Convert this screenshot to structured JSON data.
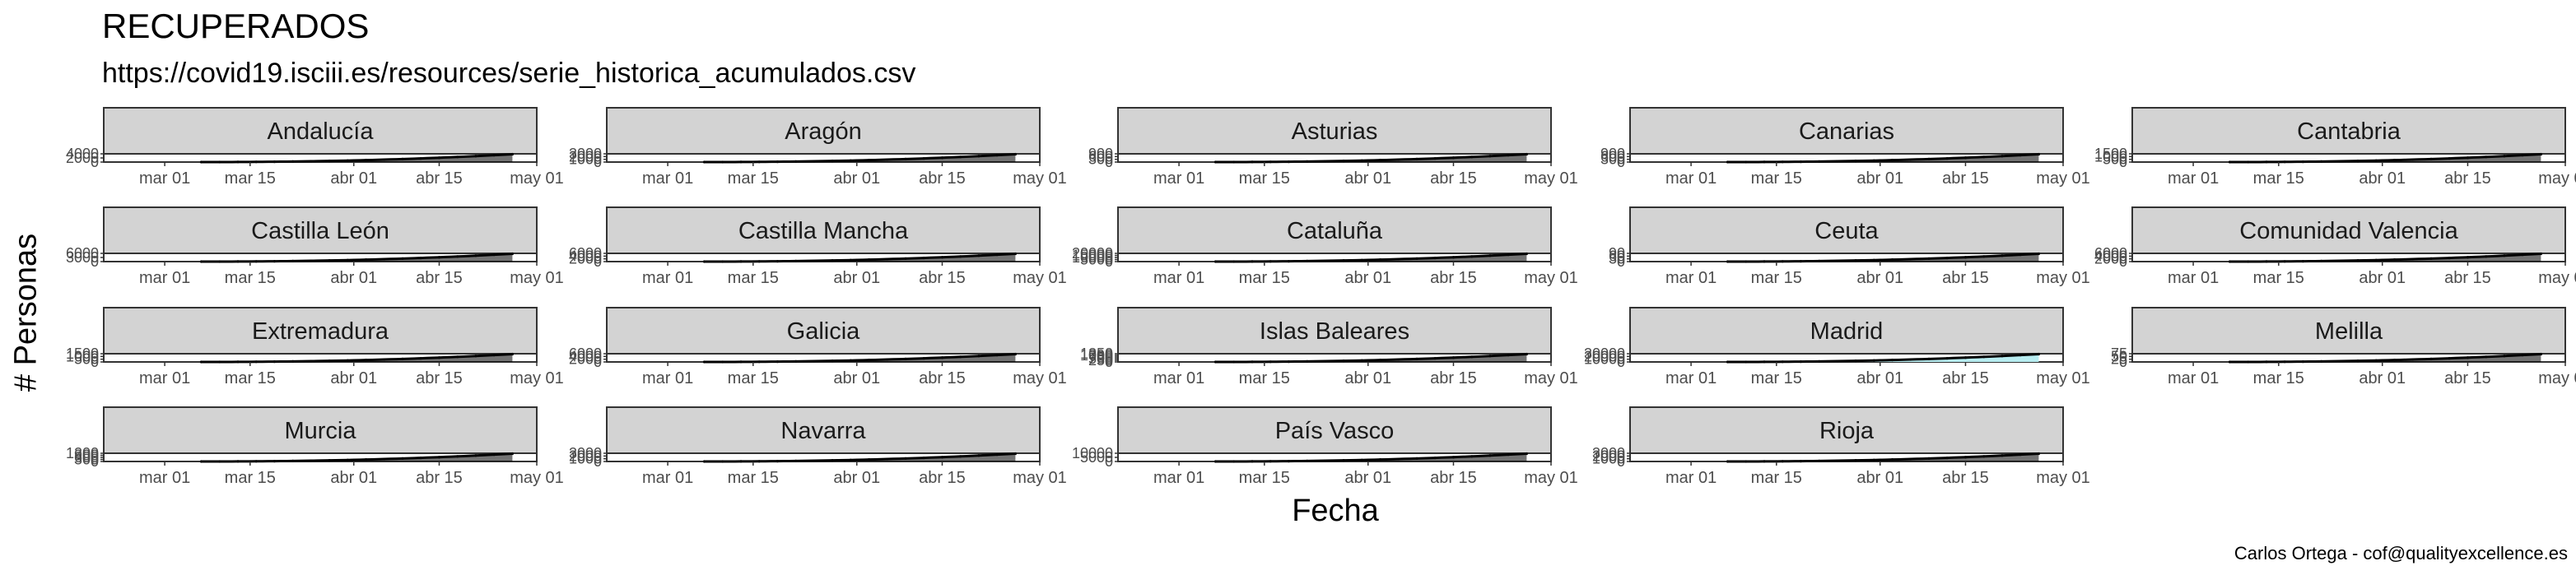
{
  "title": "RECUPERADOS",
  "subtitle": "https://covid19.isciii.es/resources/serie_historica_acumulados.csv",
  "caption": "Carlos Ortega - cof@qualityexcellence.es",
  "chart_data": {
    "type": "area",
    "xlabel": "Fecha",
    "ylabel": "# Personas",
    "x_range": [
      "2020-02-20",
      "2020-05-01"
    ],
    "x_ticks": [
      "mar 01",
      "mar 15",
      "abr 01",
      "abr 15",
      "may 01"
    ],
    "series_start": "2020-03-07",
    "series_end": "2020-04-27",
    "colors": {
      "strip": "#d3d3d3",
      "line": "#000000",
      "fill": "#000000",
      "madrid_fill": "#b7ecf0"
    },
    "panels": [
      {
        "name": "Andalucía",
        "yticks": [
          "0",
          "2000",
          "4000"
        ],
        "final_value": 4300
      },
      {
        "name": "Aragón",
        "yticks": [
          "0",
          "1000",
          "2000",
          "3000"
        ],
        "final_value": 3300
      },
      {
        "name": "Asturias",
        "yticks": [
          "0",
          "300",
          "600",
          "900"
        ],
        "final_value": 1000
      },
      {
        "name": "Canarias",
        "yticks": [
          "0",
          "300",
          "600",
          "900"
        ],
        "final_value": 1000
      },
      {
        "name": "Cantabria",
        "yticks": [
          "0",
          "500",
          "1000",
          "1500"
        ],
        "final_value": 1600
      },
      {
        "name": "Castilla León",
        "yticks": [
          "0",
          "3000",
          "6000"
        ],
        "final_value": 6500
      },
      {
        "name": "Castilla Mancha",
        "yticks": [
          "0",
          "2000",
          "4000",
          "6000"
        ],
        "final_value": 6800
      },
      {
        "name": "Cataluña",
        "yticks": [
          "0",
          "5000",
          "10000",
          "15000",
          "20000"
        ],
        "final_value": 21000
      },
      {
        "name": "Ceuta",
        "yticks": [
          "0",
          "30",
          "60",
          "90"
        ],
        "final_value": 95
      },
      {
        "name": "Comunidad Valencia",
        "yticks": [
          "0",
          "2000",
          "4000",
          "6000"
        ],
        "final_value": 6200
      },
      {
        "name": "Extremadura",
        "yticks": [
          "0",
          "500",
          "1000",
          "1500"
        ],
        "final_value": 1550
      },
      {
        "name": "Galicia",
        "yticks": [
          "0",
          "2000",
          "4000",
          "6000"
        ],
        "final_value": 6500
      },
      {
        "name": "Islas Baleares",
        "yticks": [
          "0",
          "250",
          "500",
          "750",
          "1000",
          "1250"
        ],
        "final_value": 1300
      },
      {
        "name": "Madrid",
        "yticks": [
          "0",
          "10000",
          "20000",
          "30000"
        ],
        "final_value": 36000
      },
      {
        "name": "Melilla",
        "yticks": [
          "0",
          "25",
          "50",
          "75"
        ],
        "final_value": 80
      },
      {
        "name": "Murcia",
        "yticks": [
          "0",
          "300",
          "600",
          "900",
          "1200"
        ],
        "final_value": 1200
      },
      {
        "name": "Navarra",
        "yticks": [
          "0",
          "1000",
          "2000",
          "3000"
        ],
        "final_value": 3300
      },
      {
        "name": "País Vasco",
        "yticks": [
          "0",
          "5000",
          "10000"
        ],
        "final_value": 11000
      },
      {
        "name": "Rioja",
        "yticks": [
          "0",
          "1000",
          "2000",
          "3000"
        ],
        "final_value": 3200
      }
    ]
  }
}
